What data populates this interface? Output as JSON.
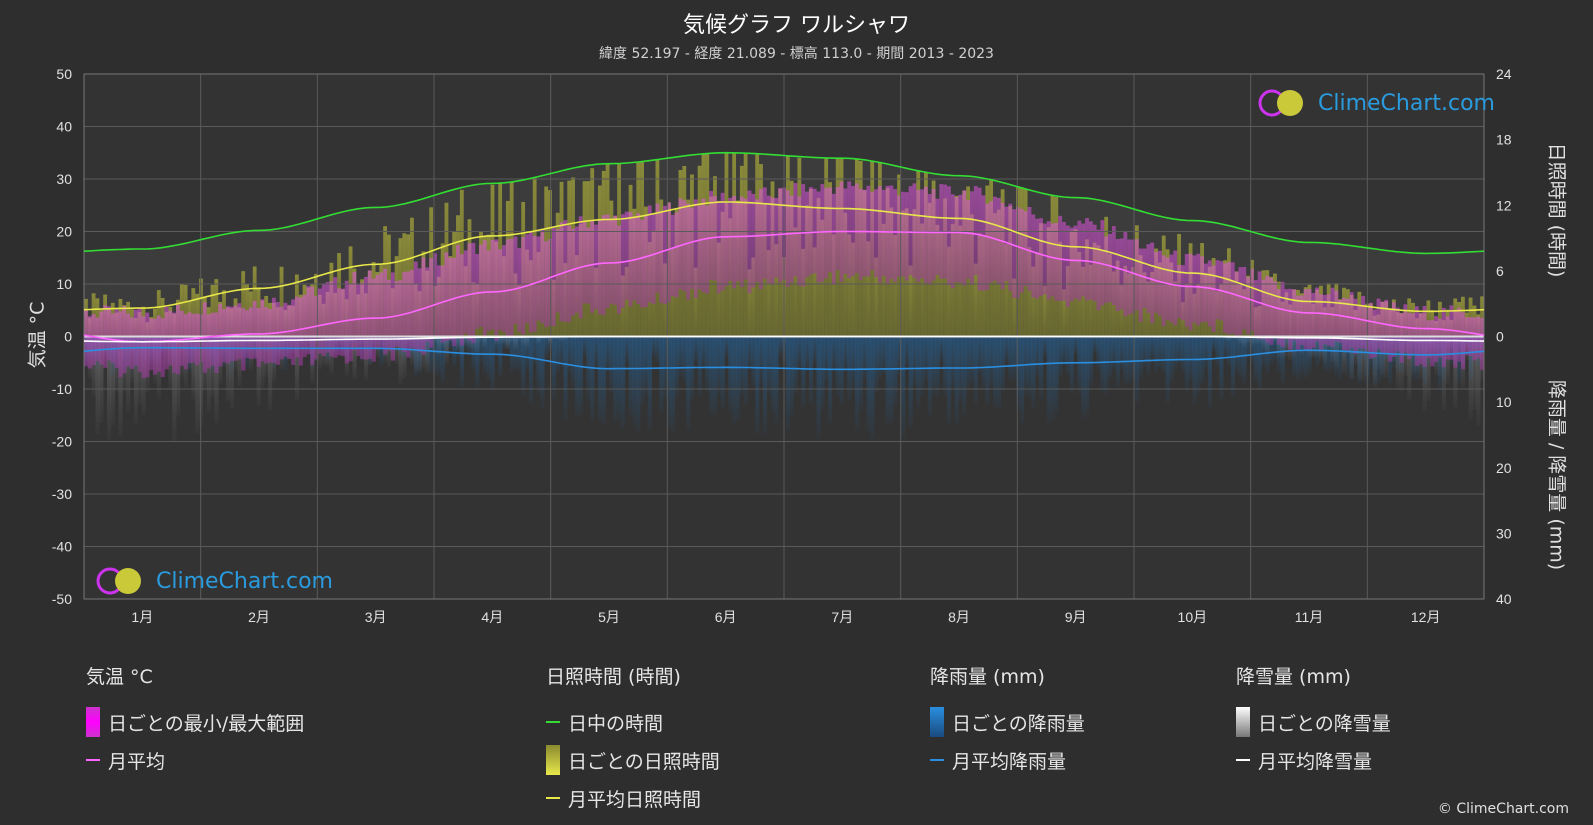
{
  "header": {
    "title": "気候グラフ ワルシャワ",
    "subtitle": "緯度 52.197 - 経度 21.089 - 標高 113.0 - 期間 2013 - 2023"
  },
  "axes": {
    "left_label": "気温 °C",
    "right_top_label": "日照時間 (時間)",
    "right_bottom_label": "降雨量 / 降雪量 (mm)"
  },
  "logo": {
    "text": "ClimeChart.com"
  },
  "copyright": "© ClimeChart.com",
  "legend": {
    "temperature": {
      "title": "気温 °C",
      "range": "日ごとの最小/最大範囲",
      "avg": "月平均"
    },
    "sunshine": {
      "title": "日照時間 (時間)",
      "daylight": "日中の時間",
      "daily": "日ごとの日照時間",
      "avg": "月平均日照時間"
    },
    "rain": {
      "title": "降雨量 (mm)",
      "daily": "日ごとの降雨量",
      "avg": "月平均降雨量"
    },
    "snow": {
      "title": "降雪量 (mm)",
      "daily": "日ごとの降雪量",
      "avg": "月平均降雪量"
    }
  },
  "colors": {
    "background": "#2e2e2e",
    "daylight": "#33dd33",
    "sunshine": "#e8e84a",
    "temp": "#ff66ff",
    "temp_range": "#cc33cc",
    "rain": "#2a8fe0",
    "snow": "#cccccc",
    "logo": "#2a9bde"
  },
  "chart_data": {
    "type": "line",
    "categories": [
      "1月",
      "2月",
      "3月",
      "4月",
      "5月",
      "6月",
      "7月",
      "8月",
      "9月",
      "10月",
      "11月",
      "12月"
    ],
    "left_axis": {
      "ylim": [
        -50,
        50
      ],
      "ticks": [
        50,
        40,
        30,
        20,
        10,
        0,
        -10,
        -20,
        -30,
        -40,
        -50
      ]
    },
    "right_axis_sunshine": {
      "ylim": [
        0,
        24
      ],
      "ticks": [
        24,
        18,
        12,
        6,
        0
      ]
    },
    "right_axis_precip": {
      "ylim": [
        0,
        40
      ],
      "ticks": [
        0,
        10,
        20,
        30,
        40
      ]
    },
    "series": [
      {
        "name": "日中の時間",
        "axis": "sunshine",
        "values": [
          8.0,
          9.7,
          11.8,
          14.0,
          15.8,
          16.8,
          16.3,
          14.7,
          12.7,
          10.6,
          8.6,
          7.6
        ]
      },
      {
        "name": "月平均日照時間",
        "axis": "sunshine",
        "values": [
          2.6,
          4.4,
          6.6,
          9.2,
          10.7,
          12.3,
          11.7,
          10.8,
          8.2,
          5.8,
          3.2,
          2.3
        ]
      },
      {
        "name": "月平均",
        "axis": "temperature",
        "values": [
          -1.0,
          0.5,
          3.5,
          8.5,
          14.0,
          19.0,
          20.0,
          19.8,
          14.5,
          9.5,
          4.5,
          1.5
        ]
      },
      {
        "name": "月平均降雨量",
        "axis": "precip",
        "values": [
          1.7,
          1.8,
          1.8,
          2.7,
          4.9,
          4.7,
          5.0,
          4.8,
          4.0,
          3.5,
          2.1,
          2.8
        ]
      },
      {
        "name": "月平均降雪量",
        "axis": "precip",
        "values": [
          0.8,
          0.6,
          0.4,
          0.1,
          0,
          0,
          0,
          0,
          0,
          0,
          0.2,
          0.6
        ]
      }
    ],
    "temp_range": {
      "min": [
        -5,
        -4,
        -2,
        2,
        7,
        11,
        13,
        12,
        8,
        4,
        0,
        -3
      ],
      "max": [
        3,
        5,
        10,
        16,
        21,
        25,
        27,
        26,
        20,
        13,
        7,
        3
      ]
    }
  }
}
